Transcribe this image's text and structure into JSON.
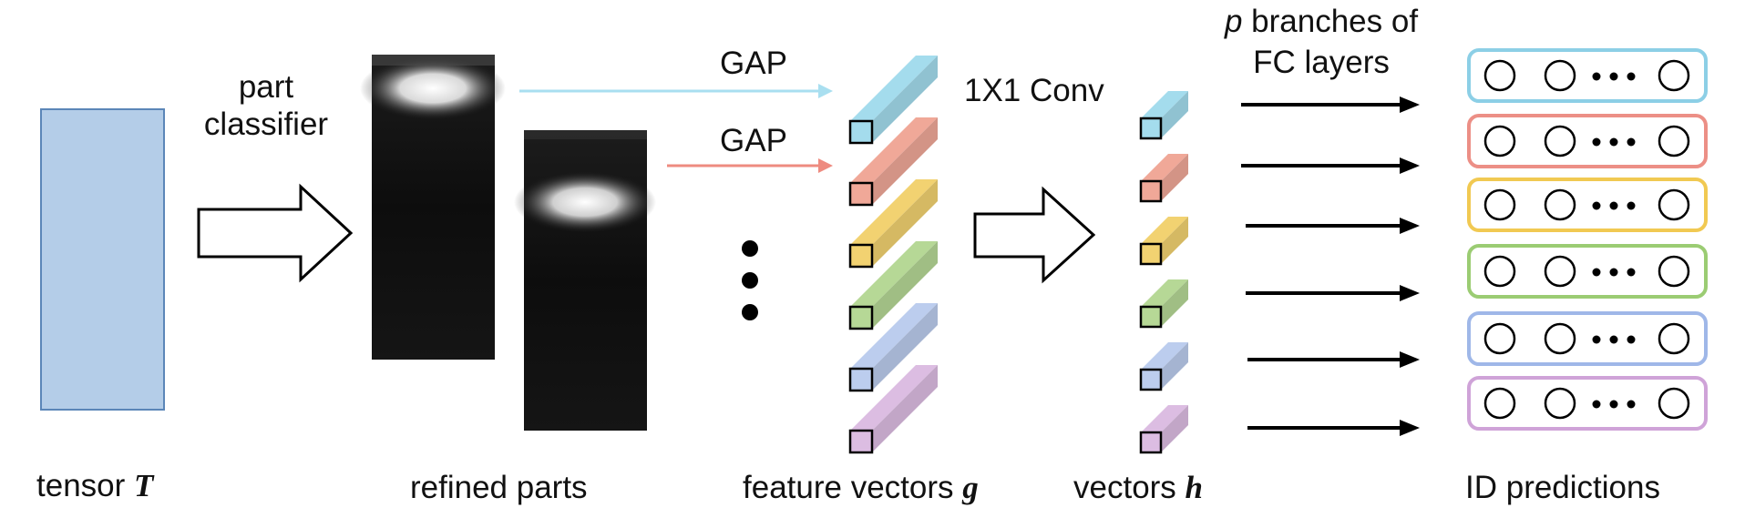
{
  "labels": {
    "part_classifier_line1": "part",
    "part_classifier_line2": "classifier",
    "gap_1": "GAP",
    "gap_2": "GAP",
    "conv": "1X1 Conv",
    "branches_p": "p",
    "branches_rest": " branches of",
    "branches_line2": "FC layers",
    "tensor": "tensor ",
    "tensor_symbol": "T",
    "refined_parts": "refined parts",
    "feature_vectors": "feature vectors ",
    "feature_symbol": "g",
    "vectors": "vectors ",
    "vectors_symbol": "h",
    "id_predictions": "ID predictions"
  },
  "colors": {
    "tensor_fill": "#b4cde8",
    "tensor_stroke": "#5b86b8",
    "parts": [
      "#a4dced",
      "#f0a898",
      "#f2d271",
      "#b6d896",
      "#bccdee",
      "#dcbde2"
    ],
    "part_strokes": [
      "#8ccfe6",
      "#ec8f86",
      "#f1c952",
      "#9bcc73",
      "#9fb7e8",
      "#cfa3d8"
    ],
    "gap_arrow_1": "#a9dff0",
    "gap_arrow_2": "#ee8b80"
  },
  "part_count": 6
}
